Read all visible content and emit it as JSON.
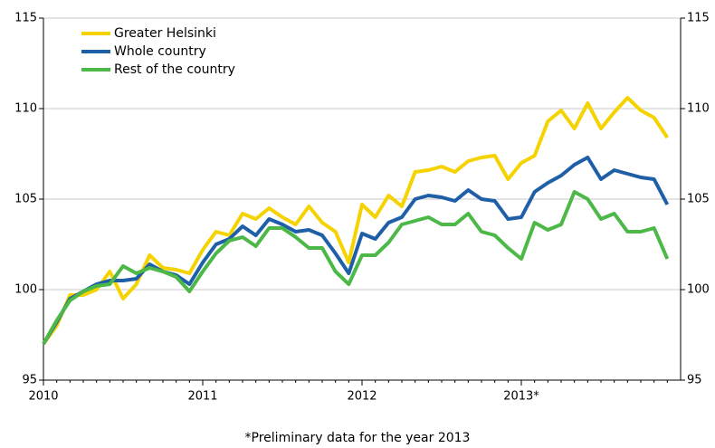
{
  "chart_data": {
    "type": "line",
    "categories": [
      "2010",
      null,
      null,
      null,
      null,
      null,
      null,
      null,
      null,
      null,
      null,
      null,
      "2011",
      null,
      null,
      null,
      null,
      null,
      null,
      null,
      null,
      null,
      null,
      null,
      "2012",
      null,
      null,
      null,
      null,
      null,
      null,
      null,
      null,
      null,
      null,
      null,
      "2013*",
      null,
      null,
      null,
      null,
      null,
      null,
      null,
      null,
      null,
      null,
      null
    ],
    "series": [
      {
        "name": "Greater Helsinki",
        "color": "#f5d300",
        "values": [
          97.0,
          98.0,
          99.7,
          99.7,
          100.0,
          101.0,
          99.5,
          100.3,
          101.9,
          101.2,
          101.1,
          100.9,
          102.2,
          103.2,
          103.0,
          104.2,
          103.9,
          104.5,
          104.0,
          103.6,
          104.6,
          103.7,
          103.2,
          101.5,
          104.7,
          104.0,
          105.2,
          104.6,
          106.5,
          106.6,
          106.8,
          106.5,
          107.1,
          107.3,
          107.4,
          106.1,
          107.0,
          107.4,
          109.3,
          109.9,
          108.9,
          110.3,
          108.9,
          109.8,
          110.6,
          109.9,
          109.5,
          108.4
        ]
      },
      {
        "name": "Whole country",
        "color": "#1f5fa8",
        "values": [
          97.0,
          98.2,
          99.5,
          99.9,
          100.3,
          100.5,
          100.5,
          100.6,
          101.4,
          101.0,
          100.8,
          100.3,
          101.5,
          102.5,
          102.8,
          103.5,
          103.0,
          103.9,
          103.6,
          103.2,
          103.3,
          103.0,
          102.0,
          100.9,
          103.1,
          102.8,
          103.7,
          104.0,
          105.0,
          105.2,
          105.1,
          104.9,
          105.5,
          105.0,
          104.9,
          103.9,
          104.0,
          105.4,
          105.9,
          106.3,
          106.9,
          107.3,
          106.1,
          106.6,
          106.4,
          106.2,
          106.1,
          104.7
        ]
      },
      {
        "name": "Rest of the country",
        "color": "#4cb848",
        "values": [
          97.0,
          98.3,
          99.4,
          99.9,
          100.2,
          100.3,
          101.3,
          100.9,
          101.2,
          101.0,
          100.7,
          99.9,
          101.0,
          102.0,
          102.7,
          102.9,
          102.4,
          103.4,
          103.4,
          102.9,
          102.3,
          102.3,
          101.0,
          100.3,
          101.9,
          101.9,
          102.6,
          103.6,
          103.8,
          104.0,
          103.6,
          103.6,
          104.2,
          103.2,
          103.0,
          102.3,
          101.7,
          103.7,
          103.3,
          103.6,
          105.4,
          105.0,
          103.9,
          104.2,
          103.2,
          103.2,
          103.4,
          101.7
        ]
      }
    ],
    "ylim": [
      95,
      115
    ],
    "yticks": [
      95,
      100,
      105,
      110,
      115
    ],
    "y2lim": [
      95,
      115
    ],
    "y2ticks": [
      95,
      100,
      105,
      110,
      115
    ],
    "grid": true,
    "legend": "upper left",
    "footnote": "*Preliminary data for the year 2013"
  }
}
